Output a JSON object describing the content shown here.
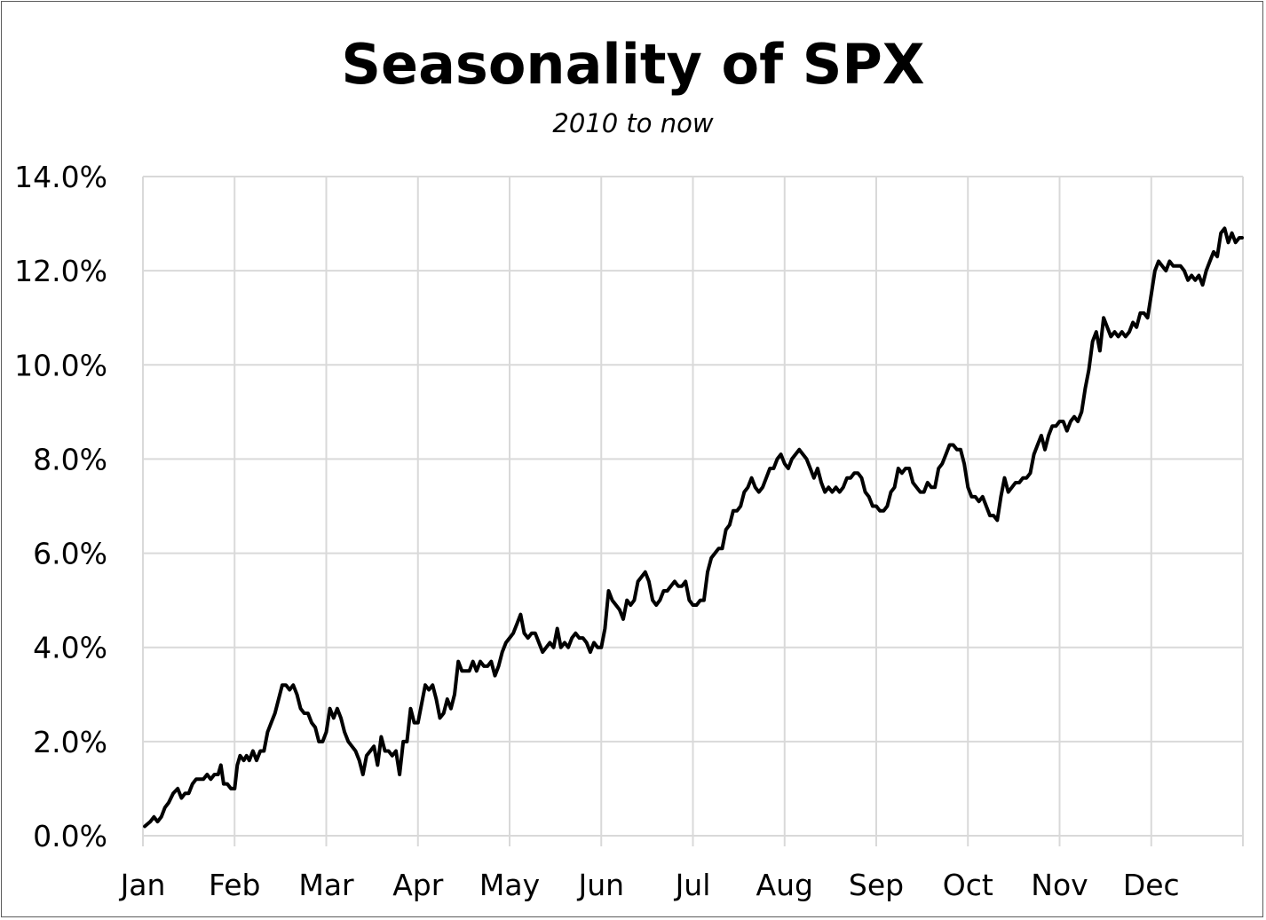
{
  "chart_data": {
    "type": "line",
    "title": "Seasonality of SPX",
    "subtitle": "2010 to now",
    "xlabel": "",
    "ylabel": "",
    "x_categories": [
      "Jan",
      "Feb",
      "Mar",
      "Apr",
      "May",
      "Jun",
      "Jul",
      "Aug",
      "Sep",
      "Oct",
      "Nov",
      "Dec"
    ],
    "y_ticks": [
      "0.0%",
      "2.0%",
      "4.0%",
      "6.0%",
      "8.0%",
      "10.0%",
      "12.0%",
      "14.0%"
    ],
    "ylim": [
      0,
      14
    ],
    "xlim_months": [
      0,
      12
    ],
    "grid": true,
    "legend": "none",
    "series": [
      {
        "color": "#000000",
        "x": [
          0.02,
          0.08,
          0.12,
          0.16,
          0.2,
          0.24,
          0.28,
          0.33,
          0.38,
          0.42,
          0.46,
          0.5,
          0.54,
          0.58,
          0.62,
          0.66,
          0.7,
          0.74,
          0.78,
          0.82,
          0.85,
          0.88,
          0.92,
          0.96,
          1.0,
          1.03,
          1.06,
          1.1,
          1.13,
          1.16,
          1.2,
          1.24,
          1.28,
          1.32,
          1.36,
          1.4,
          1.44,
          1.48,
          1.52,
          1.56,
          1.6,
          1.64,
          1.68,
          1.72,
          1.76,
          1.8,
          1.84,
          1.88,
          1.92,
          1.96,
          2.0,
          2.04,
          2.08,
          2.12,
          2.16,
          2.2,
          2.24,
          2.28,
          2.32,
          2.36,
          2.4,
          2.44,
          2.48,
          2.52,
          2.56,
          2.6,
          2.64,
          2.68,
          2.72,
          2.76,
          2.8,
          2.84,
          2.88,
          2.92,
          2.96,
          3.0,
          3.04,
          3.08,
          3.12,
          3.16,
          3.2,
          3.24,
          3.28,
          3.32,
          3.36,
          3.4,
          3.44,
          3.48,
          3.52,
          3.56,
          3.6,
          3.64,
          3.68,
          3.72,
          3.76,
          3.8,
          3.84,
          3.88,
          3.92,
          3.96,
          4.0,
          4.04,
          4.08,
          4.12,
          4.16,
          4.2,
          4.24,
          4.28,
          4.32,
          4.36,
          4.4,
          4.44,
          4.48,
          4.52,
          4.56,
          4.6,
          4.64,
          4.68,
          4.72,
          4.76,
          4.8,
          4.84,
          4.88,
          4.92,
          4.96,
          5.0,
          5.04,
          5.08,
          5.12,
          5.16,
          5.2,
          5.24,
          5.28,
          5.32,
          5.36,
          5.4,
          5.44,
          5.48,
          5.52,
          5.56,
          5.6,
          5.64,
          5.68,
          5.72,
          5.76,
          5.8,
          5.84,
          5.88,
          5.92,
          5.96,
          6.0,
          6.04,
          6.08,
          6.12,
          6.16,
          6.2,
          6.24,
          6.28,
          6.32,
          6.36,
          6.4,
          6.44,
          6.48,
          6.52,
          6.56,
          6.6,
          6.64,
          6.68,
          6.72,
          6.76,
          6.8,
          6.84,
          6.88,
          6.92,
          6.96,
          7.0,
          7.04,
          7.08,
          7.12,
          7.16,
          7.2,
          7.24,
          7.28,
          7.32,
          7.36,
          7.4,
          7.44,
          7.48,
          7.52,
          7.56,
          7.6,
          7.64,
          7.68,
          7.72,
          7.76,
          7.8,
          7.84,
          7.88,
          7.92,
          7.96,
          8.0,
          8.04,
          8.08,
          8.12,
          8.16,
          8.2,
          8.24,
          8.28,
          8.32,
          8.36,
          8.4,
          8.44,
          8.48,
          8.52,
          8.56,
          8.6,
          8.64,
          8.68,
          8.72,
          8.76,
          8.8,
          8.84,
          8.88,
          8.92,
          8.96,
          9.0,
          9.04,
          9.08,
          9.12,
          9.16,
          9.2,
          9.24,
          9.28,
          9.32,
          9.36,
          9.4,
          9.44,
          9.48,
          9.52,
          9.56,
          9.6,
          9.64,
          9.68,
          9.72,
          9.76,
          9.8,
          9.84,
          9.88,
          9.92,
          9.96,
          10.0,
          10.04,
          10.08,
          10.12,
          10.16,
          10.2,
          10.24,
          10.28,
          10.32,
          10.36,
          10.4,
          10.44,
          10.48,
          10.52,
          10.56,
          10.6,
          10.64,
          10.68,
          10.72,
          10.76,
          10.8,
          10.84,
          10.88,
          10.92,
          10.96,
          11.0,
          11.04,
          11.08,
          11.12,
          11.16,
          11.2,
          11.24,
          11.28,
          11.32,
          11.36,
          11.4,
          11.44,
          11.48,
          11.52,
          11.56,
          11.6,
          11.64,
          11.68,
          11.72,
          11.76,
          11.8,
          11.84,
          11.88,
          11.92,
          11.96,
          11.99
        ],
        "y": [
          0.2,
          0.3,
          0.4,
          0.3,
          0.4,
          0.6,
          0.7,
          0.9,
          1.0,
          0.8,
          0.9,
          0.9,
          1.1,
          1.2,
          1.2,
          1.2,
          1.3,
          1.2,
          1.3,
          1.3,
          1.5,
          1.1,
          1.1,
          1.0,
          1.0,
          1.5,
          1.7,
          1.6,
          1.7,
          1.6,
          1.8,
          1.6,
          1.8,
          1.8,
          2.2,
          2.4,
          2.6,
          2.9,
          3.2,
          3.2,
          3.1,
          3.2,
          3.0,
          2.7,
          2.6,
          2.6,
          2.4,
          2.3,
          2.0,
          2.0,
          2.2,
          2.7,
          2.5,
          2.7,
          2.5,
          2.2,
          2.0,
          1.9,
          1.8,
          1.6,
          1.3,
          1.7,
          1.8,
          1.9,
          1.5,
          2.1,
          1.8,
          1.8,
          1.7,
          1.8,
          1.3,
          2.0,
          2.0,
          2.7,
          2.4,
          2.4,
          2.8,
          3.2,
          3.1,
          3.2,
          2.9,
          2.5,
          2.6,
          2.9,
          2.7,
          3.0,
          3.7,
          3.5,
          3.5,
          3.5,
          3.7,
          3.5,
          3.7,
          3.6,
          3.6,
          3.7,
          3.4,
          3.6,
          3.9,
          4.1,
          4.2,
          4.3,
          4.5,
          4.7,
          4.3,
          4.2,
          4.3,
          4.3,
          4.1,
          3.9,
          4.0,
          4.1,
          4.0,
          4.4,
          4.0,
          4.1,
          4.0,
          4.2,
          4.3,
          4.2,
          4.2,
          4.1,
          3.9,
          4.1,
          4.0,
          4.0,
          4.4,
          5.2,
          5.0,
          4.9,
          4.8,
          4.6,
          5.0,
          4.9,
          5.0,
          5.4,
          5.5,
          5.6,
          5.4,
          5.0,
          4.9,
          5.0,
          5.2,
          5.2,
          5.3,
          5.4,
          5.3,
          5.3,
          5.4,
          5.0,
          4.9,
          4.9,
          5.0,
          5.0,
          5.6,
          5.9,
          6.0,
          6.1,
          6.1,
          6.5,
          6.6,
          6.9,
          6.9,
          7.0,
          7.3,
          7.4,
          7.6,
          7.4,
          7.3,
          7.4,
          7.6,
          7.8,
          7.8,
          8.0,
          8.1,
          7.9,
          7.8,
          8.0,
          8.1,
          8.2,
          8.1,
          8.0,
          7.8,
          7.6,
          7.8,
          7.5,
          7.3,
          7.4,
          7.3,
          7.4,
          7.3,
          7.4,
          7.6,
          7.6,
          7.7,
          7.7,
          7.6,
          7.3,
          7.2,
          7.0,
          7.0,
          6.9,
          6.9,
          7.0,
          7.3,
          7.4,
          7.8,
          7.7,
          7.8,
          7.8,
          7.5,
          7.4,
          7.3,
          7.3,
          7.5,
          7.4,
          7.4,
          7.8,
          7.9,
          8.1,
          8.3,
          8.3,
          8.2,
          8.2,
          7.9,
          7.4,
          7.2,
          7.2,
          7.1,
          7.2,
          7.0,
          6.8,
          6.8,
          6.7,
          7.2,
          7.6,
          7.3,
          7.4,
          7.5,
          7.5,
          7.6,
          7.6,
          7.7,
          8.1,
          8.3,
          8.5,
          8.2,
          8.5,
          8.7,
          8.7,
          8.8,
          8.8,
          8.6,
          8.8,
          8.9,
          8.8,
          9.0,
          9.5,
          9.9,
          10.5,
          10.7,
          10.3,
          11.0,
          10.8,
          10.6,
          10.7,
          10.6,
          10.7,
          10.6,
          10.7,
          10.9,
          10.8,
          11.1,
          11.1,
          11.0,
          11.5,
          12.0,
          12.2,
          12.1,
          12.0,
          12.2,
          12.1,
          12.1,
          12.1,
          12.0,
          11.8,
          11.9,
          11.8,
          11.9,
          11.7,
          12.0,
          12.2,
          12.4,
          12.3,
          12.8,
          12.9,
          12.6,
          12.8,
          12.6,
          12.7,
          12.7
        ]
      }
    ]
  }
}
